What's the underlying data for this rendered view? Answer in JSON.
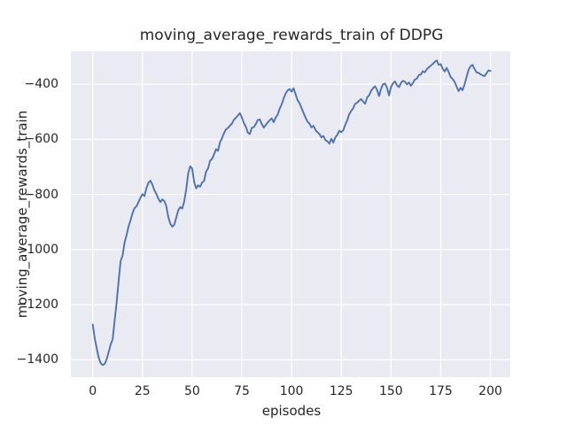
{
  "figure": {
    "title": "moving_average_rewards_train of DDPG",
    "background_color": "#ffffff"
  },
  "chart_data": {
    "type": "line",
    "title": "moving_average_rewards_train of DDPG",
    "xlabel": "episodes",
    "ylabel": "moving_average_rewards_train",
    "grid": true,
    "legend": "none",
    "plot_background": "#eaeaf2",
    "grid_color": "#ffffff",
    "xlim": [
      -11,
      210
    ],
    "ylim": [
      -1463,
      -281
    ],
    "xticks": {
      "values": [
        0,
        25,
        50,
        75,
        100,
        125,
        150,
        175,
        200
      ],
      "labels": [
        "0",
        "25",
        "50",
        "75",
        "100",
        "125",
        "150",
        "175",
        "200"
      ]
    },
    "yticks": {
      "values": [
        -400,
        -600,
        -800,
        -1000,
        -1200,
        -1400
      ],
      "labels": [
        "−400",
        "−600",
        "−800",
        "−1000",
        "−1200",
        "−1400"
      ]
    },
    "x_start": 0,
    "x_step": 1,
    "series": [
      {
        "name": "moving_average_rewards_train",
        "color": "#4c72b0",
        "line_width": 1.9,
        "values": [
          -1272,
          -1322,
          -1358,
          -1392,
          -1412,
          -1419,
          -1415,
          -1398,
          -1372,
          -1345,
          -1326,
          -1258,
          -1193,
          -1115,
          -1042,
          -1022,
          -975,
          -948,
          -916,
          -894,
          -868,
          -850,
          -843,
          -828,
          -812,
          -799,
          -806,
          -777,
          -758,
          -750,
          -764,
          -785,
          -798,
          -816,
          -828,
          -818,
          -824,
          -843,
          -882,
          -906,
          -917,
          -910,
          -884,
          -858,
          -846,
          -851,
          -826,
          -782,
          -724,
          -698,
          -706,
          -755,
          -778,
          -767,
          -772,
          -757,
          -751,
          -717,
          -706,
          -678,
          -671,
          -655,
          -636,
          -642,
          -611,
          -596,
          -578,
          -564,
          -559,
          -551,
          -543,
          -529,
          -522,
          -514,
          -505,
          -521,
          -541,
          -554,
          -576,
          -581,
          -558,
          -556,
          -545,
          -530,
          -528,
          -544,
          -558,
          -548,
          -539,
          -531,
          -524,
          -538,
          -521,
          -511,
          -489,
          -474,
          -452,
          -434,
          -423,
          -418,
          -427,
          -415,
          -436,
          -458,
          -469,
          -487,
          -504,
          -521,
          -536,
          -543,
          -557,
          -551,
          -566,
          -574,
          -581,
          -593,
          -588,
          -603,
          -607,
          -616,
          -598,
          -612,
          -593,
          -584,
          -569,
          -574,
          -567,
          -547,
          -531,
          -509,
          -497,
          -487,
          -471,
          -467,
          -460,
          -454,
          -463,
          -471,
          -448,
          -441,
          -424,
          -414,
          -408,
          -421,
          -443,
          -417,
          -400,
          -398,
          -413,
          -441,
          -411,
          -397,
          -390,
          -404,
          -411,
          -396,
          -388,
          -391,
          -401,
          -394,
          -406,
          -396,
          -383,
          -380,
          -367,
          -365,
          -353,
          -357,
          -346,
          -339,
          -333,
          -327,
          -319,
          -314,
          -330,
          -327,
          -344,
          -354,
          -341,
          -356,
          -374,
          -381,
          -392,
          -409,
          -425,
          -413,
          -422,
          -401,
          -374,
          -348,
          -335,
          -330,
          -345,
          -357,
          -359,
          -364,
          -368,
          -371,
          -361,
          -350,
          -352
        ]
      }
    ]
  }
}
